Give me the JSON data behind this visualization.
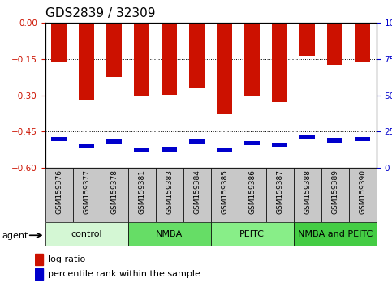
{
  "title": "GDS2839 / 32309",
  "samples": [
    "GSM159376",
    "GSM159377",
    "GSM159378",
    "GSM159381",
    "GSM159383",
    "GSM159384",
    "GSM159385",
    "GSM159386",
    "GSM159387",
    "GSM159388",
    "GSM159389",
    "GSM159390"
  ],
  "log_ratios": [
    -0.163,
    -0.318,
    -0.225,
    -0.305,
    -0.298,
    -0.267,
    -0.375,
    -0.305,
    -0.328,
    -0.135,
    -0.175,
    -0.165
  ],
  "percentile_ranks": [
    20,
    15,
    18,
    12,
    13,
    18,
    12,
    17,
    16,
    21,
    19,
    20
  ],
  "groups": [
    {
      "label": "control",
      "indices": [
        0,
        1,
        2
      ],
      "color": "#d4f7d4"
    },
    {
      "label": "NMBA",
      "indices": [
        3,
        4,
        5
      ],
      "color": "#66dd66"
    },
    {
      "label": "PEITC",
      "indices": [
        6,
        7,
        8
      ],
      "color": "#88ee88"
    },
    {
      "label": "NMBA and PEITC",
      "indices": [
        9,
        10,
        11
      ],
      "color": "#44cc44"
    }
  ],
  "ylim_min": -0.6,
  "ylim_max": 0.0,
  "yticks": [
    0,
    -0.15,
    -0.3,
    -0.45,
    -0.6
  ],
  "bar_color": "#cc1100",
  "pct_color": "#0000cc",
  "grid_color": "#000000",
  "bg_plot": "#ffffff",
  "bg_xtick": "#c8c8c8",
  "title_fontsize": 11,
  "tick_fontsize": 7.5,
  "sample_fontsize": 6.5,
  "group_fontsize": 8,
  "legend_fontsize": 8,
  "left_color": "#cc1100",
  "right_color": "#0000cc"
}
